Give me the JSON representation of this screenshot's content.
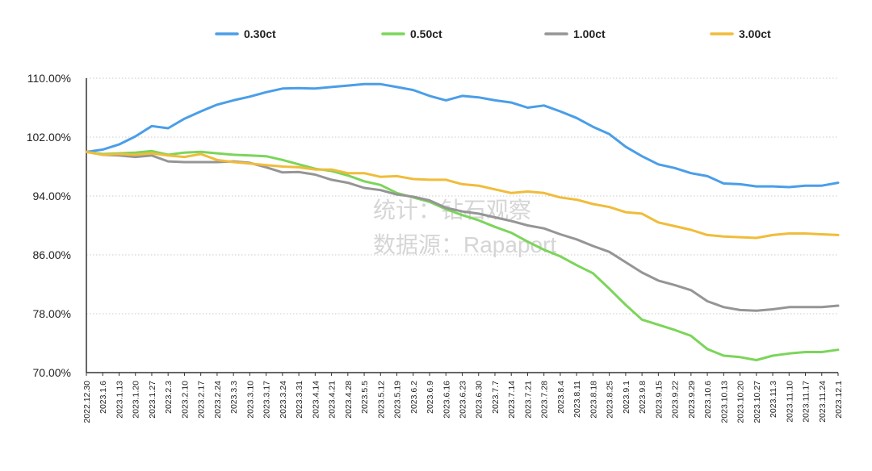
{
  "watermark": {
    "line1": "统计：钻石观察",
    "line2": "数据源：Rapaport"
  },
  "chart_data": {
    "type": "line",
    "title": "",
    "xlabel": "",
    "ylabel": "",
    "ylim": [
      70,
      110
    ],
    "yticks": [
      {
        "value": 110,
        "label": "110.00%"
      },
      {
        "value": 102,
        "label": "102.00%"
      },
      {
        "value": 94,
        "label": "94.00%"
      },
      {
        "value": 86,
        "label": "86.00%"
      },
      {
        "value": 78,
        "label": "78.00%"
      },
      {
        "value": 70,
        "label": "70.00%"
      }
    ],
    "grid": "horizontal dotted",
    "legend_position": "top",
    "x": [
      "2022.12.30",
      "2023.1.6",
      "2023.1.13",
      "2023.1.20",
      "2023.1.27",
      "2023.2.3",
      "2023.2.10",
      "2023.2.17",
      "2023.2.24",
      "2023.3.3",
      "2023.3.10",
      "2023.3.17",
      "2023.3.24",
      "2023.3.31",
      "2023.4.14",
      "2023.4.21",
      "2023.4.28",
      "2023.5.5",
      "2023.5.12",
      "2023.5.19",
      "2023.6.2",
      "2023.6.9",
      "2023.6.16",
      "2023.6.23",
      "2023.6.30",
      "2023.7.7",
      "2023.7.14",
      "2023.7.21",
      "2023.7.28",
      "2023.8.4",
      "2023.8.11",
      "2023.8.18",
      "2023.8.25",
      "2023.9.1",
      "2023.9.8",
      "2023.9.15",
      "2023.9.22",
      "2023.9.29",
      "2023.10.6",
      "2023.10.13",
      "2023.10.20",
      "2023.10.27",
      "2023.11.3",
      "2023.11.10",
      "2023.11.17",
      "2023.11.24",
      "2023.12.1"
    ],
    "series": [
      {
        "name": "0.30ct",
        "color": "#4a9ee8",
        "values": [
          100.0,
          100.3,
          101.0,
          102.1,
          103.5,
          103.2,
          104.5,
          105.5,
          106.4,
          107.0,
          107.5,
          108.1,
          108.6,
          108.65,
          108.6,
          108.8,
          109.0,
          109.2,
          109.2,
          108.8,
          108.4,
          107.6,
          107.0,
          107.6,
          107.4,
          107.0,
          106.7,
          106.0,
          106.3,
          105.5,
          104.6,
          103.4,
          102.4,
          100.7,
          99.4,
          98.3,
          97.8,
          97.1,
          96.7,
          95.7,
          95.6,
          95.3,
          95.3,
          95.2,
          95.4,
          95.4,
          95.8
        ]
      },
      {
        "name": "0.50ct",
        "color": "#7bd55a",
        "values": [
          100.0,
          99.7,
          99.8,
          99.9,
          100.1,
          99.6,
          99.9,
          100.0,
          99.8,
          99.6,
          99.5,
          99.4,
          98.9,
          98.3,
          97.7,
          97.4,
          96.8,
          96.0,
          95.5,
          94.4,
          93.8,
          93.2,
          92.2,
          91.4,
          90.7,
          89.8,
          89.0,
          87.8,
          86.7,
          85.8,
          84.6,
          83.5,
          81.4,
          79.2,
          77.2,
          76.5,
          75.8,
          75.0,
          73.2,
          72.3,
          72.1,
          71.7,
          72.3,
          72.6,
          72.8,
          72.8,
          73.1
        ]
      },
      {
        "name": "1.00ct",
        "color": "#959595",
        "values": [
          100.0,
          99.6,
          99.5,
          99.3,
          99.5,
          98.7,
          98.6,
          98.6,
          98.6,
          98.7,
          98.5,
          97.9,
          97.2,
          97.25,
          96.9,
          96.2,
          95.8,
          95.1,
          94.8,
          94.2,
          93.9,
          93.4,
          92.4,
          91.9,
          91.6,
          91.1,
          90.6,
          90.0,
          89.6,
          88.8,
          88.1,
          87.2,
          86.4,
          85.0,
          83.6,
          82.5,
          81.9,
          81.2,
          79.7,
          78.9,
          78.5,
          78.4,
          78.6,
          78.9,
          78.9,
          78.9,
          79.1
        ]
      },
      {
        "name": "3.00ct",
        "color": "#f0bc3a",
        "values": [
          100.0,
          99.6,
          99.7,
          99.6,
          99.8,
          99.5,
          99.3,
          99.7,
          98.9,
          98.6,
          98.4,
          98.2,
          98.0,
          97.9,
          97.6,
          97.6,
          97.1,
          97.1,
          96.6,
          96.7,
          96.3,
          96.2,
          96.2,
          95.6,
          95.4,
          94.9,
          94.4,
          94.6,
          94.4,
          93.8,
          93.5,
          92.9,
          92.5,
          91.8,
          91.6,
          90.4,
          89.9,
          89.4,
          88.7,
          88.5,
          88.4,
          88.3,
          88.7,
          88.9,
          88.9,
          88.8,
          88.7
        ]
      }
    ]
  }
}
